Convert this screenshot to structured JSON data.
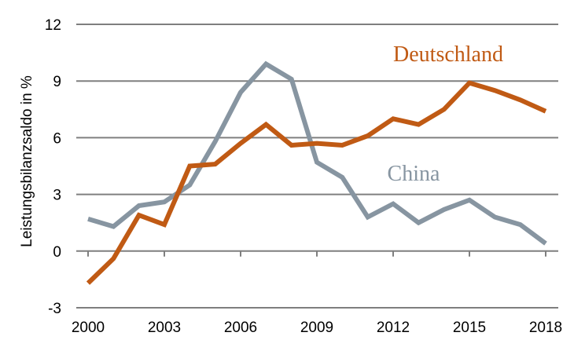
{
  "chart_data": {
    "type": "line",
    "title": "",
    "xlabel": "",
    "ylabel": "Leistungsbilanzsaldo in %",
    "ylim": [
      -3,
      12
    ],
    "xlim": [
      2000,
      2018
    ],
    "yticks": [
      12,
      9,
      6,
      3,
      0,
      -3
    ],
    "xticks": [
      2000,
      2003,
      2006,
      2009,
      2012,
      2015,
      2018
    ],
    "grid": "horizontal",
    "x": [
      2000,
      2001,
      2002,
      2003,
      2004,
      2005,
      2006,
      2007,
      2008,
      2009,
      2010,
      2011,
      2012,
      2013,
      2014,
      2015,
      2016,
      2017,
      2018
    ],
    "series": [
      {
        "name": "Deutschland",
        "color": "#c05a14",
        "values": [
          -1.7,
          -0.4,
          1.9,
          1.4,
          4.5,
          4.6,
          5.7,
          6.7,
          5.6,
          5.7,
          5.6,
          6.1,
          7.0,
          6.7,
          7.5,
          8.9,
          8.5,
          8.0,
          7.4
        ]
      },
      {
        "name": "China",
        "color": "#8795a1",
        "values": [
          1.7,
          1.3,
          2.4,
          2.6,
          3.5,
          5.8,
          8.4,
          9.9,
          9.1,
          4.7,
          3.9,
          1.8,
          2.5,
          1.5,
          2.2,
          2.7,
          1.8,
          1.4,
          0.4
        ]
      }
    ]
  }
}
